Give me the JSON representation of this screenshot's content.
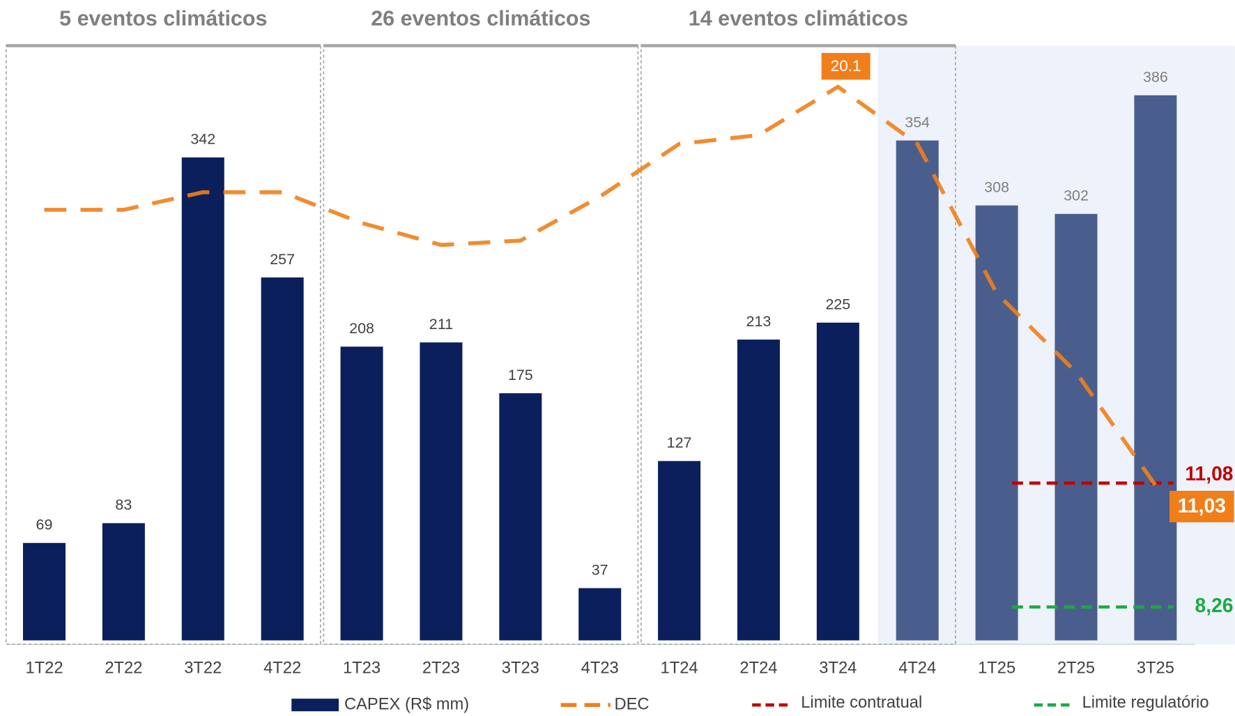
{
  "chart_data": {
    "type": "bar_line",
    "groups": [
      "5 eventos climáticos",
      "26 eventos climáticos",
      "14 eventos climáticos"
    ],
    "categories": [
      "1T22",
      "2T22",
      "3T22",
      "4T22",
      "1T23",
      "2T23",
      "3T23",
      "4T23",
      "1T24",
      "2T24",
      "3T24",
      "4T24",
      "1T25",
      "2T25",
      "3T25"
    ],
    "ylim": [
      0,
      420
    ],
    "y2lim": [
      7.5,
      21
    ],
    "series": [
      {
        "name": "CAPEX (R$ mm)",
        "type": "bar",
        "color": "#0b1f5c",
        "highlight_color": "#4a5e8e",
        "values": [
          69,
          83,
          342,
          257,
          208,
          211,
          175,
          37,
          127,
          213,
          225,
          354,
          308,
          302,
          386
        ]
      },
      {
        "name": "DEC",
        "type": "line",
        "axis": "y2",
        "color": "#f07f1a",
        "values": [
          17.3,
          17.3,
          17.7,
          17.7,
          17.0,
          16.5,
          16.6,
          17.6,
          18.8,
          19.0,
          20.1,
          18.8,
          15.4,
          13.6,
          11.03
        ],
        "value_labels": [
          null,
          null,
          null,
          null,
          null,
          null,
          null,
          null,
          null,
          null,
          "20.1",
          null,
          null,
          null,
          "11,03"
        ]
      }
    ],
    "limits": [
      {
        "name": "Limite contratual",
        "value": 11.08,
        "label": "11,08",
        "color": "#c00000"
      },
      {
        "name": "Limite regulatório",
        "value": 8.26,
        "label": "8,26",
        "color": "#1aab40"
      }
    ]
  }
}
